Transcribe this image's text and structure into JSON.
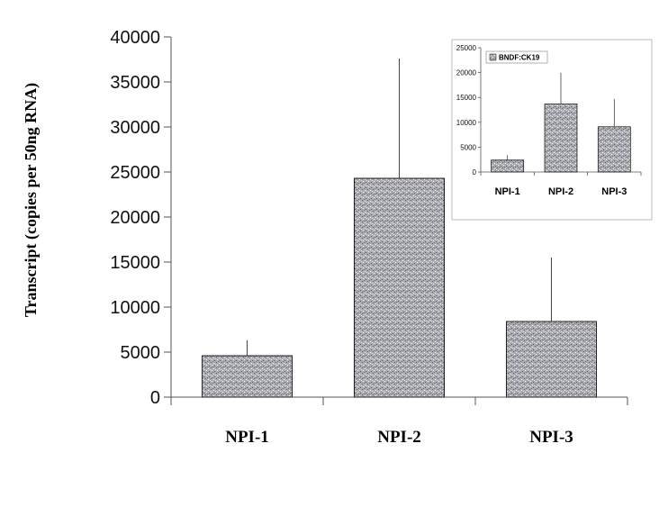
{
  "chart_data": [
    {
      "type": "bar",
      "title": "",
      "xlabel": "",
      "ylabel": "Transcript (copies per 50ng RNA)",
      "categories": [
        "NPI-1",
        "NPI-2",
        "NPI-3"
      ],
      "values": [
        4600,
        24300,
        8400
      ],
      "error_bars": [
        1700,
        13300,
        7100
      ],
      "ylim": [
        0,
        40000
      ],
      "yticks": [
        0,
        5000,
        10000,
        15000,
        20000,
        25000,
        30000,
        35000,
        40000
      ],
      "grid": false,
      "bar_color": "#a9abb0"
    },
    {
      "type": "bar",
      "title": "",
      "xlabel": "",
      "ylabel": "",
      "categories": [
        "NPI-1",
        "NPI-2",
        "NPI-3"
      ],
      "series": [
        {
          "name": "BNDF:CK19",
          "values": [
            2400,
            13700,
            9100
          ],
          "error_bars": [
            1000,
            6300,
            5600
          ]
        }
      ],
      "ylim": [
        0,
        25000
      ],
      "yticks": [
        0,
        5000,
        10000,
        15000,
        20000,
        25000
      ],
      "legend": "top-left",
      "grid": false,
      "bar_color": "#a9abb0"
    }
  ]
}
